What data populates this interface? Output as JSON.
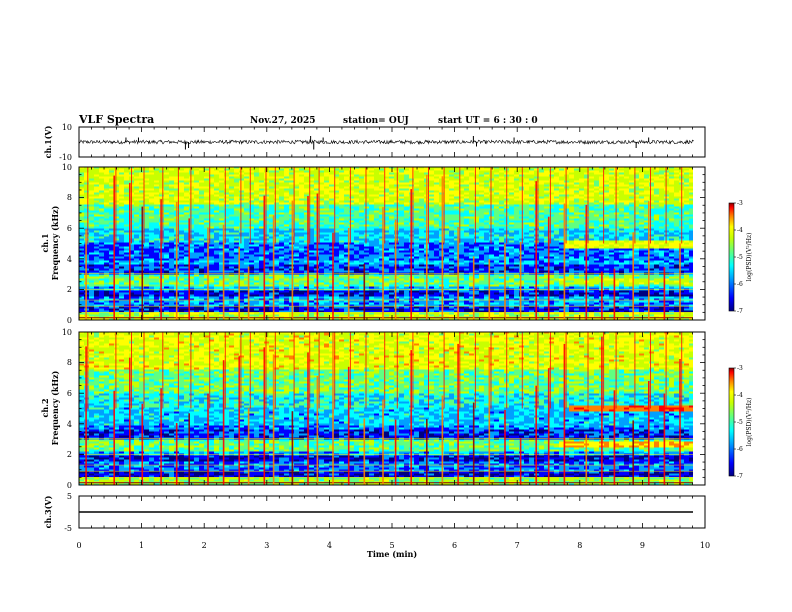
{
  "header": {
    "title": "VLF Spectra",
    "date": "Nov.27, 2025",
    "station": "station= OUJ",
    "start": "start  UT =  6 : 30 : 0"
  },
  "colors": {
    "colormap": [
      "#000080",
      "#0000ff",
      "#00a0ff",
      "#00ffff",
      "#60ff80",
      "#c8ff00",
      "#ffff00",
      "#ff8000",
      "#ff0000",
      "#8b0000"
    ]
  },
  "chart_data": [
    {
      "type": "line",
      "id": "ch1-waveform",
      "ylabel": "ch.1(V)",
      "xlim": [
        0,
        10
      ],
      "ylim": [
        -10,
        10
      ],
      "yticks": [
        "10",
        "-10"
      ],
      "baseline": 0,
      "noise_amplitude": 1.2,
      "spikes": [
        {
          "t": 0.75,
          "v": 3
        },
        {
          "t": 0.95,
          "v": 3
        },
        {
          "t": 1.7,
          "v": -5
        },
        {
          "t": 1.75,
          "v": -4
        },
        {
          "t": 3.7,
          "v": 4
        },
        {
          "t": 3.75,
          "v": -5
        },
        {
          "t": 3.9,
          "v": 3
        },
        {
          "t": 6.3,
          "v": 4
        },
        {
          "t": 6.35,
          "v": -3
        },
        {
          "t": 6.95,
          "v": 3
        },
        {
          "t": 8.9,
          "v": -4
        },
        {
          "t": 9.1,
          "v": 3
        }
      ]
    },
    {
      "type": "heatmap",
      "id": "ch1-spectrogram",
      "ylabel": "ch.1",
      "ylabel2": "Frequency (kHz)",
      "xlim": [
        0,
        9.82
      ],
      "ylim": [
        0,
        10
      ],
      "yticks": [
        "0",
        "2",
        "4",
        "6",
        "8",
        "10"
      ],
      "colorbar": {
        "label": "log(PSD)(V²/Hz)",
        "range": [
          -7,
          -3
        ],
        "ticks": [
          "-3",
          "-4",
          "-5",
          "-6",
          "-7"
        ]
      },
      "bands": [
        {
          "f0": 0,
          "f1": 0.45,
          "level": 0.55
        },
        {
          "f0": 0.45,
          "f1": 0.8,
          "level": 0.14
        },
        {
          "f0": 0.8,
          "f1": 1.5,
          "level": 0.26
        },
        {
          "f0": 1.5,
          "f1": 1.9,
          "level": 0.12
        },
        {
          "f0": 1.9,
          "f1": 2.1,
          "level": 0.28
        },
        {
          "f0": 2.1,
          "f1": 2.9,
          "level": 0.46
        },
        {
          "f0": 2.9,
          "f1": 3.6,
          "level": 0.18
        },
        {
          "f0": 3.6,
          "f1": 3.9,
          "level": 0.28
        },
        {
          "f0": 3.9,
          "f1": 5.0,
          "level": 0.22
        },
        {
          "f0": 5.0,
          "f1": 6.0,
          "level": 0.32
        },
        {
          "f0": 6.0,
          "f1": 7.5,
          "level": 0.42
        },
        {
          "f0": 7.5,
          "f1": 10,
          "level": 0.58
        }
      ],
      "emissions": [
        {
          "t0": 7.7,
          "t1": 9.82,
          "f0": 4.7,
          "f1": 5.1,
          "level": 0.62
        },
        {
          "t0": 7.6,
          "t1": 9.82,
          "f0": 2.3,
          "f1": 2.7,
          "level": 0.55
        }
      ],
      "spherics": [
        0.1,
        0.55,
        0.8,
        1.0,
        1.3,
        1.55,
        1.75,
        2.05,
        2.3,
        2.55,
        2.7,
        2.95,
        3.1,
        3.4,
        3.65,
        3.8,
        4.05,
        4.3,
        4.55,
        4.85,
        5.05,
        5.3,
        5.55,
        5.8,
        6.05,
        6.3,
        6.55,
        6.8,
        7.05,
        7.3,
        7.5,
        7.75,
        8.1,
        8.35,
        8.55,
        8.85,
        9.1,
        9.35,
        9.6
      ]
    },
    {
      "type": "heatmap",
      "id": "ch2-spectrogram",
      "ylabel": "ch.2",
      "ylabel2": "Frequency (kHz)",
      "xlim": [
        0,
        9.82
      ],
      "ylim": [
        0,
        10
      ],
      "yticks": [
        "0",
        "2",
        "4",
        "6",
        "8",
        "10"
      ],
      "colorbar": {
        "label": "log(PSD)(V²/Hz)",
        "range": [
          -7,
          -3
        ],
        "ticks": [
          "-3",
          "-4",
          "-5",
          "-6",
          "-7"
        ]
      },
      "bands": [
        {
          "f0": 0,
          "f1": 0.45,
          "level": 0.5
        },
        {
          "f0": 0.45,
          "f1": 0.8,
          "level": 0.12
        },
        {
          "f0": 0.8,
          "f1": 1.5,
          "level": 0.22
        },
        {
          "f0": 1.5,
          "f1": 1.9,
          "level": 0.12
        },
        {
          "f0": 1.9,
          "f1": 2.1,
          "level": 0.26
        },
        {
          "f0": 2.1,
          "f1": 2.9,
          "level": 0.44
        },
        {
          "f0": 2.9,
          "f1": 3.6,
          "level": 0.16
        },
        {
          "f0": 3.6,
          "f1": 3.9,
          "level": 0.24
        },
        {
          "f0": 3.9,
          "f1": 5.0,
          "level": 0.3
        },
        {
          "f0": 5.0,
          "f1": 6.0,
          "level": 0.36
        },
        {
          "f0": 6.0,
          "f1": 7.5,
          "level": 0.46
        },
        {
          "f0": 7.5,
          "f1": 10,
          "level": 0.6
        }
      ],
      "emissions": [
        {
          "t0": 7.8,
          "t1": 9.82,
          "f0": 4.8,
          "f1": 5.2,
          "level": 0.78
        },
        {
          "t0": 7.6,
          "t1": 9.82,
          "f0": 2.4,
          "f1": 2.8,
          "level": 0.7
        }
      ],
      "spherics": [
        0.1,
        0.55,
        0.8,
        1.0,
        1.3,
        1.55,
        1.75,
        2.05,
        2.3,
        2.55,
        2.7,
        2.95,
        3.1,
        3.4,
        3.65,
        3.8,
        4.05,
        4.3,
        4.55,
        4.85,
        5.05,
        5.3,
        5.55,
        5.8,
        6.05,
        6.3,
        6.55,
        6.8,
        7.05,
        7.3,
        7.5,
        7.75,
        8.1,
        8.35,
        8.55,
        8.85,
        9.1,
        9.35,
        9.6
      ]
    },
    {
      "type": "line",
      "id": "ch3-waveform",
      "ylabel": "ch.3(V)",
      "xlabel": "Time (min)",
      "xlim": [
        0,
        10
      ],
      "ylim": [
        -5,
        5
      ],
      "yticks": [
        "5",
        "-5"
      ],
      "xticks": [
        "0",
        "1",
        "2",
        "3",
        "4",
        "5",
        "6",
        "7",
        "8",
        "9",
        "10"
      ],
      "baseline": 0,
      "noise_amplitude": 0
    }
  ]
}
